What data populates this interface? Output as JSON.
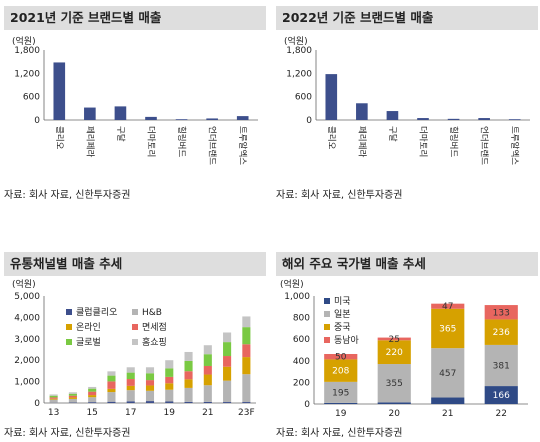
{
  "panels": {
    "p1": {
      "title": "2021년 기준 브랜드별 매출",
      "source": "자료: 회사 자료, 신한투자증권"
    },
    "p2": {
      "title": "2022년 기준 브랜드별 매출",
      "source": "자료: 회사 자료, 신한투자증권"
    },
    "p3": {
      "title": "유통채널별 매출 추세",
      "source": "자료: 회사 자료, 신한투자증권"
    },
    "p4": {
      "title": "해외 주요 국가별 매출 추세",
      "source": "자료: 회사 자료, 신한투자증권"
    }
  },
  "colors": {
    "bar_navy": "#3d4f8c",
    "club_clio": "#3d4f8c",
    "hb": "#b4b4b4",
    "online": "#d6a100",
    "duty_free": "#e8665f",
    "global": "#7ac943",
    "home_shopping": "#c4c4c4",
    "us": "#2f4a86",
    "japan": "#b4b4b4",
    "china": "#d6a100",
    "sea": "#e8665f"
  },
  "chart_data": [
    {
      "type": "bar",
      "title": "2021년 기준 브랜드별 매출",
      "unit": "(억원)",
      "categories": [
        "클리오",
        "페리페라",
        "구달",
        "더마토리",
        "힐링버드",
        "언더브랜드",
        "트루알엑스"
      ],
      "values": [
        1480,
        320,
        350,
        80,
        20,
        40,
        100
      ],
      "ylim": [
        0,
        1800
      ],
      "yticks": [
        "0",
        "600",
        "1,200",
        "1,800"
      ]
    },
    {
      "type": "bar",
      "title": "2022년 기준 브랜드별 매출",
      "unit": "(억원)",
      "categories": [
        "클리오",
        "페리페라",
        "구달",
        "더마토리",
        "힐링버드",
        "언더브랜드",
        "트루알엑스"
      ],
      "values": [
        1180,
        430,
        230,
        50,
        30,
        50,
        20
      ],
      "ylim": [
        0,
        1800
      ],
      "yticks": [
        "0",
        "600",
        "1,200",
        "1,800"
      ]
    },
    {
      "type": "bar",
      "stacked": true,
      "title": "유통채널별 매출 추세",
      "unit": "(억원)",
      "categories": [
        "13",
        "14",
        "15",
        "16",
        "17",
        "18",
        "19",
        "20",
        "21",
        "22",
        "23F"
      ],
      "xticklabels": [
        "13",
        "",
        "15",
        "",
        "17",
        "",
        "19",
        "",
        "21",
        "",
        "23F"
      ],
      "series": [
        {
          "name": "클럽클리오",
          "values": [
            10,
            20,
            40,
            60,
            80,
            90,
            70,
            55,
            50,
            45,
            45
          ]
        },
        {
          "name": "H&B",
          "values": [
            150,
            170,
            230,
            450,
            520,
            480,
            550,
            650,
            780,
            1000,
            1300
          ]
        },
        {
          "name": "온라인",
          "values": [
            40,
            70,
            100,
            150,
            200,
            250,
            300,
            400,
            500,
            650,
            800
          ]
        },
        {
          "name": "면세점",
          "values": [
            60,
            80,
            160,
            350,
            320,
            250,
            300,
            380,
            400,
            500,
            600
          ]
        },
        {
          "name": "글로벌",
          "values": [
            80,
            90,
            140,
            270,
            300,
            320,
            400,
            480,
            550,
            650,
            800
          ]
        },
        {
          "name": "홈쇼핑",
          "values": [
            60,
            70,
            80,
            200,
            250,
            280,
            380,
            420,
            420,
            450,
            500
          ]
        }
      ],
      "ylim": [
        0,
        5000
      ],
      "yticks": [
        "0",
        "1,000",
        "2,000",
        "3,000",
        "4,000",
        "5,000"
      ]
    },
    {
      "type": "bar",
      "stacked": true,
      "title": "해외 주요 국가별 매출 추세",
      "unit": "(억원)",
      "categories": [
        "19",
        "20",
        "21",
        "22"
      ],
      "series": [
        {
          "name": "미국",
          "values": [
            10,
            15,
            60,
            166
          ],
          "labels": [
            "",
            "",
            "",
            "166"
          ]
        },
        {
          "name": "일본",
          "values": [
            195,
            355,
            457,
            381
          ],
          "labels": [
            "195",
            "355",
            "457",
            "381"
          ]
        },
        {
          "name": "중국",
          "values": [
            208,
            220,
            365,
            236
          ],
          "labels": [
            "208",
            "220",
            "365",
            "236"
          ]
        },
        {
          "name": "동남아",
          "values": [
            50,
            25,
            47,
            133
          ],
          "labels": [
            "50",
            "25",
            "47",
            "133"
          ]
        }
      ],
      "ylim": [
        0,
        1000
      ],
      "yticks": [
        "0",
        "200",
        "400",
        "600",
        "800",
        "1,000"
      ]
    }
  ]
}
